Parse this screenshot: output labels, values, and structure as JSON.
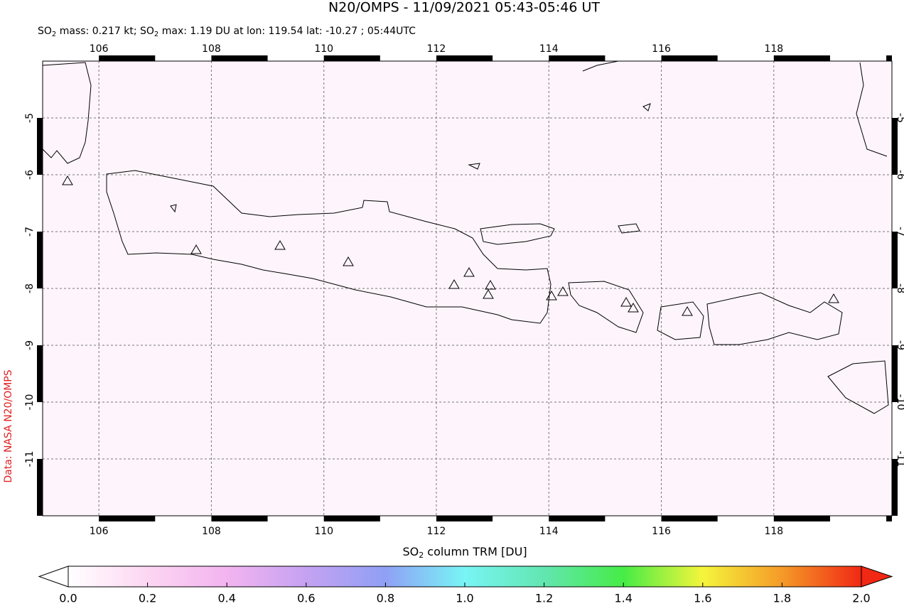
{
  "chart_data": {
    "type": "map",
    "title": "N20/OMPS - 11/09/2021 05:43-05:46 UT",
    "subtitle": [
      "SO",
      "2",
      " mass: 0.217 kt; SO",
      "2",
      " max: 1.19 DU at lon: 119.54 lat: -10.27 ; 05:44UTC"
    ],
    "colorbar_label": [
      "SO",
      "2",
      " column TRM [DU]"
    ],
    "credit": "Data: NASA N20/OMPS",
    "xlim": [
      105,
      120.1
    ],
    "ylim": [
      -12,
      -4
    ],
    "xticks": [
      106,
      108,
      110,
      112,
      114,
      116,
      118
    ],
    "yticks": [
      -5,
      -6,
      -7,
      -8,
      -9,
      -10,
      -11
    ],
    "grid": true,
    "clim": [
      0,
      2
    ],
    "cticks": [
      {
        "value": 0,
        "label": "0.0"
      },
      {
        "value": 0.2,
        "label": "0.2"
      },
      {
        "value": 0.4,
        "label": "0.4"
      },
      {
        "value": 0.6,
        "label": "0.6"
      },
      {
        "value": 0.8,
        "label": "0.8"
      },
      {
        "value": 1,
        "label": "1.0"
      },
      {
        "value": 1.2,
        "label": "1.2"
      },
      {
        "value": 1.4,
        "label": "1.4"
      },
      {
        "value": 1.6,
        "label": "1.6"
      },
      {
        "value": 1.8,
        "label": "1.8"
      },
      {
        "value": 2,
        "label": "2.0"
      }
    ]
  }
}
